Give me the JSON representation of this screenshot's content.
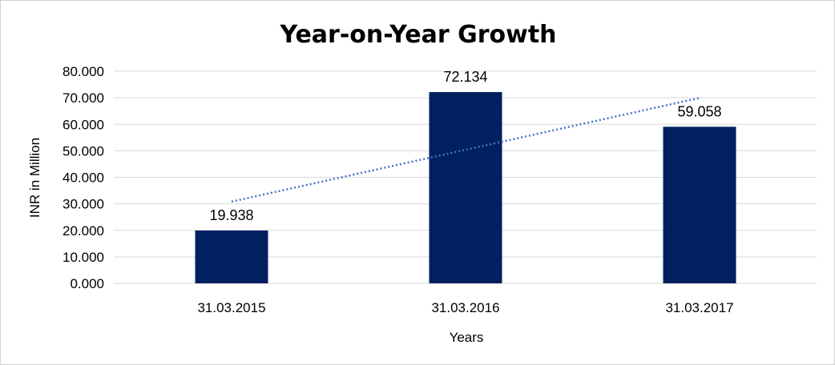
{
  "chart_data": {
    "type": "bar",
    "title": "Year-on-Year Growth",
    "xlabel": "Years",
    "ylabel": "INR in Million",
    "categories": [
      "31.03.2015",
      "31.03.2016",
      "31.03.2017"
    ],
    "values": [
      19.938,
      72.134,
      59.058
    ],
    "value_labels": [
      "19.938",
      "72.134",
      "59.058"
    ],
    "ylim": [
      0,
      80
    ],
    "y_ticks": [
      0,
      10,
      20,
      30,
      40,
      50,
      60,
      70,
      80
    ],
    "y_tick_labels": [
      "0.000",
      "10.000",
      "20.000",
      "30.000",
      "40.000",
      "50.000",
      "60.000",
      "70.000",
      "80.000"
    ],
    "trendline": {
      "type": "linear",
      "style": "dotted"
    },
    "grid": true,
    "legend": "none",
    "colors": {
      "bar": "#002060",
      "trendline": "#4472c4",
      "grid": "#d9d9d9"
    }
  }
}
